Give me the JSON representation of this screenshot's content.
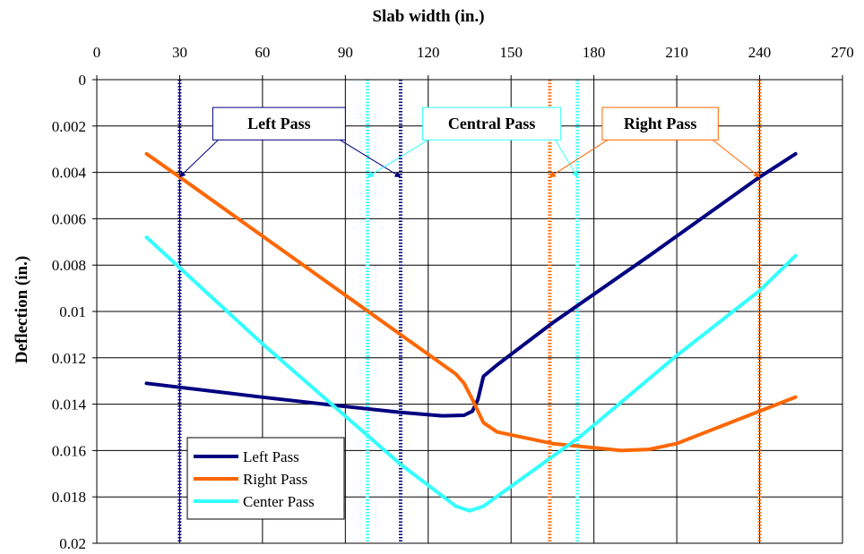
{
  "chart_data": {
    "type": "line",
    "xlabel": "Slab width (in.)",
    "ylabel": "Deflection (in.)",
    "x_axis_position": "top",
    "y_axis_reversed": true,
    "xlim": [
      0,
      270
    ],
    "ylim": [
      0,
      0.02
    ],
    "xticks": [
      0,
      30,
      60,
      90,
      120,
      150,
      180,
      210,
      240,
      270
    ],
    "xtick_labels": [
      "0",
      "30",
      "60",
      "90",
      "120",
      "150",
      "180",
      "210",
      "240",
      "270"
    ],
    "yticks": [
      0,
      0.002,
      0.004,
      0.006,
      0.008,
      0.01,
      0.012,
      0.014,
      0.016,
      0.018,
      0.02
    ],
    "ytick_labels": [
      "0",
      "0.002",
      "0.004",
      "0.006",
      "0.008",
      "0.01",
      "0.012",
      "0.014",
      "0.016",
      "0.018",
      "0.02"
    ],
    "grid": true,
    "legend_position": "bottom-left",
    "series": [
      {
        "name": "Left Pass",
        "color": "#000080",
        "points": [
          [
            18,
            0.0131
          ],
          [
            60,
            0.0137
          ],
          [
            90,
            0.0141
          ],
          [
            110,
            0.01435
          ],
          [
            125,
            0.0145
          ],
          [
            133,
            0.01448
          ],
          [
            136,
            0.0143
          ],
          [
            138,
            0.0138
          ],
          [
            140,
            0.0128
          ],
          [
            145,
            0.0123
          ],
          [
            165,
            0.0105
          ],
          [
            200,
            0.0076
          ],
          [
            240,
            0.0042
          ],
          [
            253,
            0.0032
          ]
        ]
      },
      {
        "name": "Right Pass",
        "color": "#FF6600",
        "points": [
          [
            18,
            0.0032
          ],
          [
            30,
            0.0042
          ],
          [
            70,
            0.0076
          ],
          [
            110,
            0.011
          ],
          [
            130,
            0.0127
          ],
          [
            133,
            0.0131
          ],
          [
            136,
            0.0138
          ],
          [
            140,
            0.0148
          ],
          [
            145,
            0.0152
          ],
          [
            165,
            0.0157
          ],
          [
            190,
            0.016
          ],
          [
            200,
            0.01595
          ],
          [
            210,
            0.0157
          ],
          [
            240,
            0.0143
          ],
          [
            253,
            0.0137
          ]
        ]
      },
      {
        "name": "Center Pass",
        "color": "#33FFFF",
        "points": [
          [
            18,
            0.0068
          ],
          [
            60,
            0.0114
          ],
          [
            110,
            0.0166
          ],
          [
            130,
            0.0184
          ],
          [
            135,
            0.0186
          ],
          [
            140,
            0.0184
          ],
          [
            175,
            0.0154
          ],
          [
            210,
            0.0119
          ],
          [
            240,
            0.0091
          ],
          [
            253,
            0.0076
          ]
        ]
      }
    ],
    "vertical_lines": [
      {
        "x": 30,
        "color": "#000080",
        "group": "Left Pass"
      },
      {
        "x": 110,
        "color": "#000080",
        "group": "Left Pass"
      },
      {
        "x": 98,
        "color": "#33FFFF",
        "group": "Central Pass"
      },
      {
        "x": 174,
        "color": "#33FFFF",
        "group": "Central Pass"
      },
      {
        "x": 164,
        "color": "#FF6600",
        "group": "Right Pass"
      },
      {
        "x": 240,
        "color": "#FF6600",
        "group": "Right Pass"
      }
    ],
    "annotations": [
      {
        "text": "Left Pass",
        "color": "#000080",
        "box_x": [
          42,
          90
        ],
        "box_y": [
          0.0012,
          0.0026
        ],
        "targets": [
          [
            30,
            0.0042
          ],
          [
            110,
            0.0042
          ]
        ]
      },
      {
        "text": "Central Pass",
        "color": "#33FFFF",
        "box_x": [
          118,
          168
        ],
        "box_y": [
          0.0012,
          0.0026
        ],
        "targets": [
          [
            98,
            0.0042
          ],
          [
            174,
            0.0042
          ]
        ]
      },
      {
        "text": "Right Pass",
        "color": "#FF6600",
        "box_x": [
          183,
          225
        ],
        "box_y": [
          0.0012,
          0.0026
        ],
        "targets": [
          [
            164,
            0.0042
          ],
          [
            240,
            0.0042
          ]
        ]
      }
    ]
  }
}
